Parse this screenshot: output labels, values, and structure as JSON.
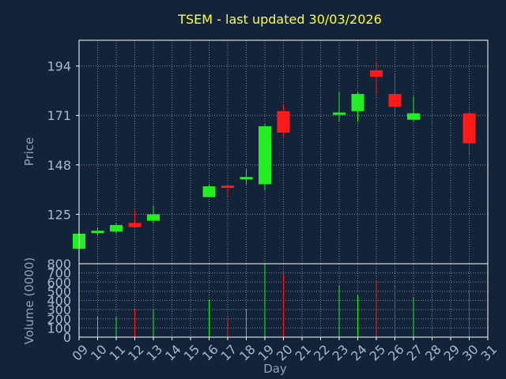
{
  "chart_data": [
    {
      "type": "candlestick",
      "title": "TSEM - last updated 30/03/2026",
      "ylabel": "Price",
      "ylim": [
        102,
        206
      ],
      "yticks": [
        125,
        148,
        171,
        194
      ],
      "x_days": [
        "09",
        "10",
        "11",
        "12",
        "13",
        "14",
        "15",
        "16",
        "17",
        "18",
        "19",
        "20",
        "21",
        "22",
        "23",
        "24",
        "25",
        "26",
        "27",
        "28",
        "29",
        "30",
        "31"
      ],
      "candles": [
        {
          "day": "09",
          "open": 109,
          "high": 116,
          "low": 108,
          "close": 116
        },
        {
          "day": "10",
          "open": 116,
          "high": 119,
          "low": 115,
          "close": 117
        },
        {
          "day": "11",
          "open": 117,
          "high": 121,
          "low": 116,
          "close": 120
        },
        {
          "day": "12",
          "open": 121,
          "high": 127,
          "low": 119,
          "close": 119
        },
        {
          "day": "13",
          "open": 122,
          "high": 129,
          "low": 121,
          "close": 125
        },
        {
          "day": "16",
          "open": 133,
          "high": 139,
          "low": 133,
          "close": 138
        },
        {
          "day": "17",
          "open": 138,
          "high": 139,
          "low": 133,
          "close": 137
        },
        {
          "day": "18",
          "open": 141,
          "high": 146,
          "low": 139,
          "close": 142
        },
        {
          "day": "19",
          "open": 139,
          "high": 167,
          "low": 136,
          "close": 166
        },
        {
          "day": "20",
          "open": 173,
          "high": 176,
          "low": 161,
          "close": 163
        },
        {
          "day": "23",
          "open": 171,
          "high": 182,
          "low": 168,
          "close": 172
        },
        {
          "day": "24",
          "open": 173,
          "high": 182,
          "low": 168,
          "close": 181
        },
        {
          "day": "25",
          "open": 192,
          "high": 196,
          "low": 181,
          "close": 189
        },
        {
          "day": "26",
          "open": 181,
          "high": 190,
          "low": 171,
          "close": 175
        },
        {
          "day": "27",
          "open": 169,
          "high": 180,
          "low": 168,
          "close": 172
        },
        {
          "day": "30",
          "open": 172,
          "high": 173,
          "low": 153,
          "close": 158
        }
      ]
    },
    {
      "type": "bar",
      "ylabel": "Volume (0000)",
      "xlabel": "Day",
      "ylim": [
        0,
        800
      ],
      "yticks": [
        0,
        100,
        200,
        300,
        400,
        500,
        600,
        700,
        800
      ],
      "volumes": [
        {
          "day": "10",
          "value": 225,
          "direction": "up"
        },
        {
          "day": "11",
          "value": 220,
          "direction": "up"
        },
        {
          "day": "12",
          "value": 300,
          "direction": "down"
        },
        {
          "day": "13",
          "value": 300,
          "direction": "up"
        },
        {
          "day": "16",
          "value": 410,
          "direction": "up"
        },
        {
          "day": "17",
          "value": 210,
          "direction": "down"
        },
        {
          "day": "18",
          "value": 310,
          "direction": "up"
        },
        {
          "day": "19",
          "value": 800,
          "direction": "up"
        },
        {
          "day": "20",
          "value": 690,
          "direction": "down"
        },
        {
          "day": "23",
          "value": 570,
          "direction": "up"
        },
        {
          "day": "24",
          "value": 460,
          "direction": "up"
        },
        {
          "day": "25",
          "value": 610,
          "direction": "down"
        },
        {
          "day": "26",
          "value": 560,
          "direction": "down"
        },
        {
          "day": "27",
          "value": 430,
          "direction": "up"
        },
        {
          "day": "30",
          "value": 520,
          "direction": "down"
        }
      ]
    }
  ],
  "colors": {
    "up": "#22ee22",
    "down": "#ff1a1a",
    "background": "#13233a",
    "title": "#ffff33",
    "axis_text": "#a9b8cc"
  }
}
